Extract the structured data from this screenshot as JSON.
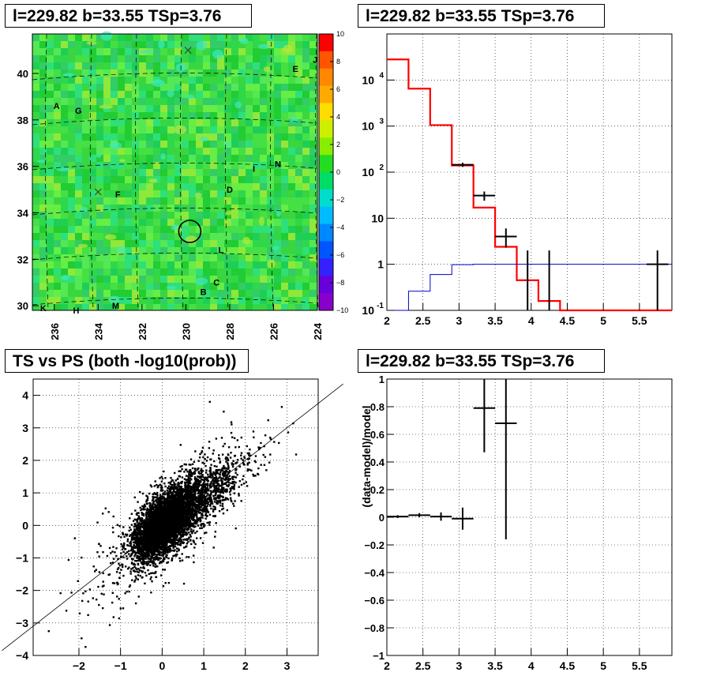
{
  "titles": {
    "map": "l=229.82 b=33.55 TSp=3.76",
    "spectrum": "l=229.82 b=33.55 TSp=3.76",
    "scatter": "TS vs PS (both -log10(prob))",
    "residual": "l=229.82 b=33.55 TSp=3.76"
  },
  "chart_data": [
    {
      "type": "heatmap",
      "name": "sky map",
      "x_ticks": [
        "236",
        "234",
        "232",
        "230",
        "228",
        "226",
        "224"
      ],
      "y_ticks": [
        "30",
        "32",
        "34",
        "36",
        "38",
        "40"
      ],
      "xlim": [
        237.0,
        224.0
      ],
      "ylim": [
        29.8,
        41.7
      ],
      "colorbar": {
        "ticks": [
          "10",
          "8",
          "6",
          "4",
          "2",
          "0",
          "−2",
          "−4",
          "−6",
          "−8",
          "−10"
        ],
        "range": [
          -10,
          10
        ]
      },
      "source_labels": [
        {
          "text": "A",
          "l": 235.9,
          "b": 38.6
        },
        {
          "text": "G",
          "l": 234.9,
          "b": 38.4
        },
        {
          "text": "E",
          "l": 225.0,
          "b": 40.2
        },
        {
          "text": "J",
          "l": 224.1,
          "b": 40.6
        },
        {
          "text": "I",
          "l": 226.9,
          "b": 35.9
        },
        {
          "text": "N",
          "l": 225.8,
          "b": 36.1
        },
        {
          "text": "D",
          "l": 228.0,
          "b": 35.0
        },
        {
          "text": "F",
          "l": 233.1,
          "b": 34.8
        },
        {
          "text": "L",
          "l": 228.4,
          "b": 32.4
        },
        {
          "text": "C",
          "l": 228.6,
          "b": 31.0
        },
        {
          "text": "B",
          "l": 229.2,
          "b": 30.6
        },
        {
          "text": "K",
          "l": 236.5,
          "b": 29.9
        },
        {
          "text": "H",
          "l": 235.0,
          "b": 29.8
        },
        {
          "text": "M",
          "l": 233.2,
          "b": 30.0
        }
      ],
      "x_markers": [
        {
          "l": 229.9,
          "b": 41.0
        },
        {
          "l": 234.0,
          "b": 34.9
        }
      ],
      "circle": {
        "l": 229.82,
        "b": 33.2
      }
    },
    {
      "type": "line",
      "name": "spectrum",
      "xlim": [
        2.0,
        5.95
      ],
      "ylim": [
        0.1,
        100000
      ],
      "y_log": true,
      "x_ticks": [
        "2",
        "2.5",
        "3",
        "3.5",
        "4",
        "4.5",
        "5",
        "5.5"
      ],
      "y_ticks": [
        "10^-1",
        "1",
        "10",
        "10^2",
        "10^3",
        "10^4"
      ],
      "series": [
        {
          "type": "step",
          "color": "#ff0000",
          "edges": [
            2.0,
            2.3,
            2.6,
            2.9,
            3.2,
            3.5,
            3.8,
            4.1,
            4.4,
            4.7,
            5.0,
            5.3,
            5.6,
            5.95
          ],
          "values": [
            28000,
            6500,
            1050,
            140,
            17,
            2.4,
            0.45,
            0.16,
            0.1,
            0.1,
            0.1,
            0.1,
            0.1
          ]
        },
        {
          "type": "step",
          "color": "#0000cc",
          "edges": [
            2.0,
            2.3,
            2.6,
            2.9,
            3.2,
            3.5,
            3.8,
            4.1,
            4.4,
            4.7,
            5.0,
            5.3,
            5.6,
            5.95
          ],
          "values": [
            0.1,
            0.26,
            0.6,
            0.98,
            1.0,
            1.0,
            1.0,
            1.0,
            1.0,
            1.0,
            1.0,
            1.0,
            1.0
          ]
        },
        {
          "type": "points",
          "color": "#000000",
          "points": [
            {
              "x": 3.05,
              "y": 145,
              "xerr": 0.15,
              "ylo": 130,
              "yhi": 160
            },
            {
              "x": 3.35,
              "y": 31,
              "xerr": 0.15,
              "ylo": 24,
              "yhi": 38
            },
            {
              "x": 3.65,
              "y": 4,
              "xerr": 0.15,
              "ylo": 2.3,
              "yhi": 6
            },
            {
              "x": 3.95,
              "y": 1,
              "xerr": 0,
              "ylo": 0.1,
              "yhi": 2
            },
            {
              "x": 4.25,
              "y": 1,
              "xerr": 0,
              "ylo": 0.1,
              "yhi": 2
            },
            {
              "x": 5.75,
              "y": 1,
              "xerr": 0.15,
              "ylo": 0.1,
              "yhi": 2
            }
          ]
        }
      ]
    },
    {
      "type": "scatter",
      "name": "ts vs ps",
      "title": "TS vs PS (both -log10(prob))",
      "xlim": [
        -3.1,
        3.75
      ],
      "ylim": [
        -4.0,
        4.5
      ],
      "x_ticks": [
        "−2",
        "−1",
        "0",
        "1",
        "2",
        "3"
      ],
      "y_ticks": [
        "−4",
        "−3",
        "−2",
        "−1",
        "0",
        "1",
        "2",
        "3",
        "4"
      ],
      "diagonal": {
        "slope": 1,
        "intercept": 0
      },
      "points_description_count": 6000
    },
    {
      "type": "scatter",
      "name": "residual",
      "xlim": [
        2.0,
        5.95
      ],
      "ylim": [
        -1.0,
        1.0
      ],
      "ylabel": "(data-model)/model",
      "x_ticks": [
        "2",
        "2.5",
        "3",
        "3.5",
        "4",
        "4.5",
        "5",
        "5.5"
      ],
      "y_ticks": [
        "−1",
        "−0.8",
        "−0.6",
        "−0.4",
        "−0.2",
        "0",
        "0.2",
        "0.4",
        "0.6",
        "0.8",
        "1"
      ],
      "points": [
        {
          "x": 2.15,
          "y": 0.005,
          "xerr": 0.15,
          "yerr": 0.01
        },
        {
          "x": 2.45,
          "y": 0.015,
          "xerr": 0.15,
          "yerr": 0.015
        },
        {
          "x": 2.75,
          "y": 0.005,
          "xerr": 0.15,
          "yerr": 0.03
        },
        {
          "x": 3.05,
          "y": -0.01,
          "xerr": 0.15,
          "yerr": 0.08
        },
        {
          "x": 3.35,
          "y": 0.79,
          "xerr": 0.15,
          "ylo": 0.47,
          "yhi": 1.0
        },
        {
          "x": 3.65,
          "y": 0.68,
          "xerr": 0.15,
          "ylo": -0.16,
          "yhi": 1.0
        }
      ]
    }
  ]
}
